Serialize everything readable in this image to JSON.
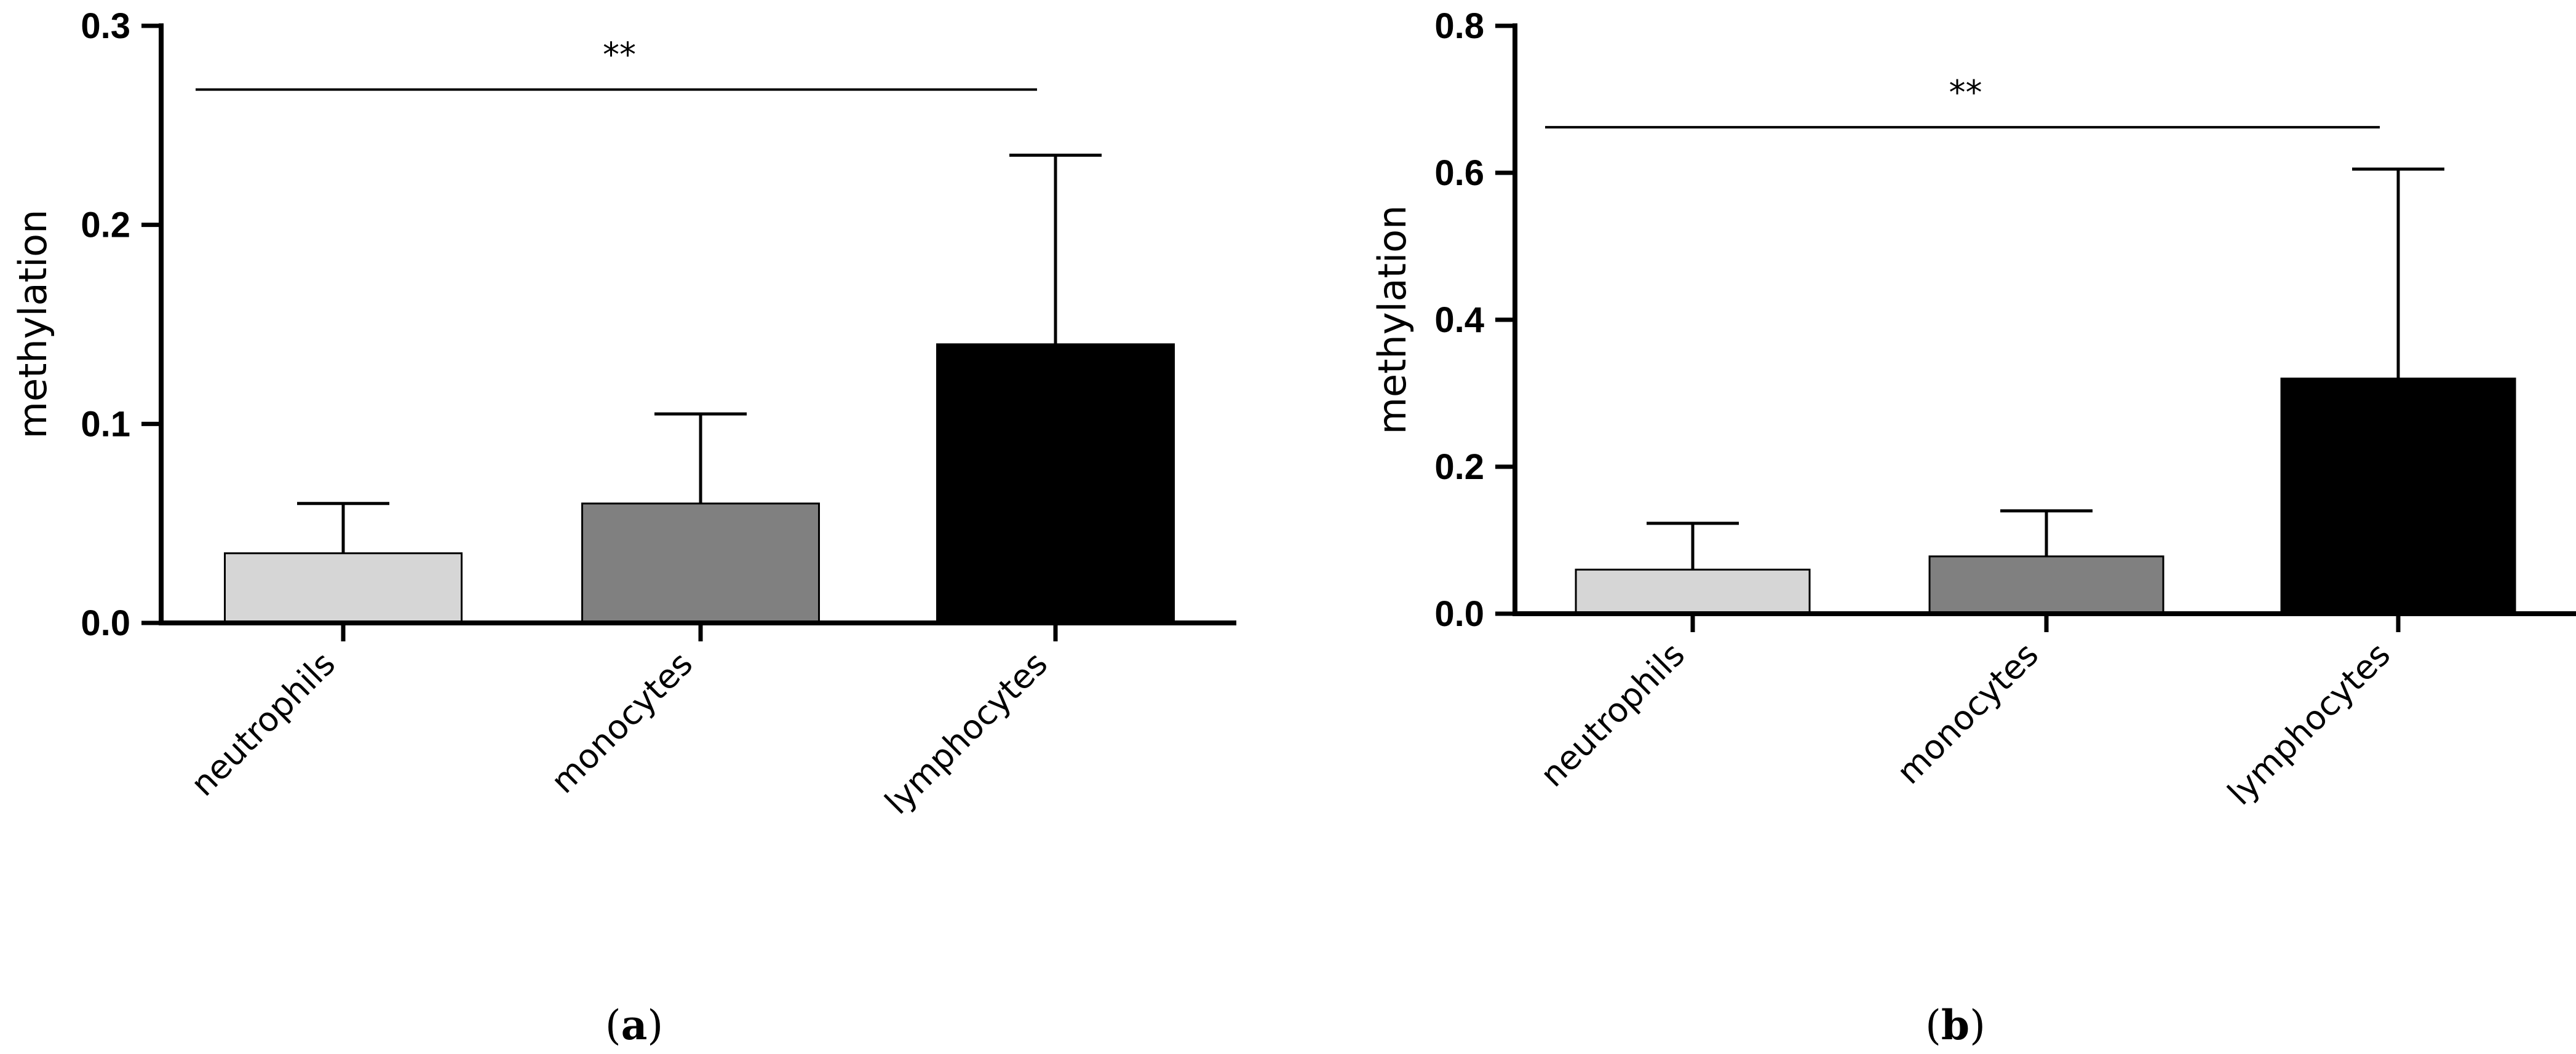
{
  "chart_data": [
    {
      "type": "bar",
      "panel_label": "a",
      "categories": [
        "neutrophils",
        "monocytes",
        "lymphocytes"
      ],
      "values": [
        0.035,
        0.06,
        0.14
      ],
      "errors": [
        0.025,
        0.045,
        0.095
      ],
      "colors": [
        "#d6d6d6",
        "#808080",
        "#000000"
      ],
      "ylabel": "methylation",
      "ylim": [
        0,
        0.3
      ],
      "yticks": [
        "0.0",
        "0.1",
        "0.2",
        "0.3"
      ],
      "significance": {
        "label": "**",
        "y": 0.268
      }
    },
    {
      "type": "bar",
      "panel_label": "b",
      "categories": [
        "neutrophils",
        "monocytes",
        "lymphocytes"
      ],
      "values": [
        0.06,
        0.078,
        0.32
      ],
      "errors": [
        0.063,
        0.062,
        0.285
      ],
      "colors": [
        "#d6d6d6",
        "#808080",
        "#000000"
      ],
      "ylabel": "methylation",
      "ylim": [
        0,
        0.8
      ],
      "yticks": [
        "0.0",
        "0.2",
        "0.4",
        "0.6",
        "0.8"
      ],
      "significance": {
        "label": "**",
        "y": 0.662
      }
    }
  ]
}
